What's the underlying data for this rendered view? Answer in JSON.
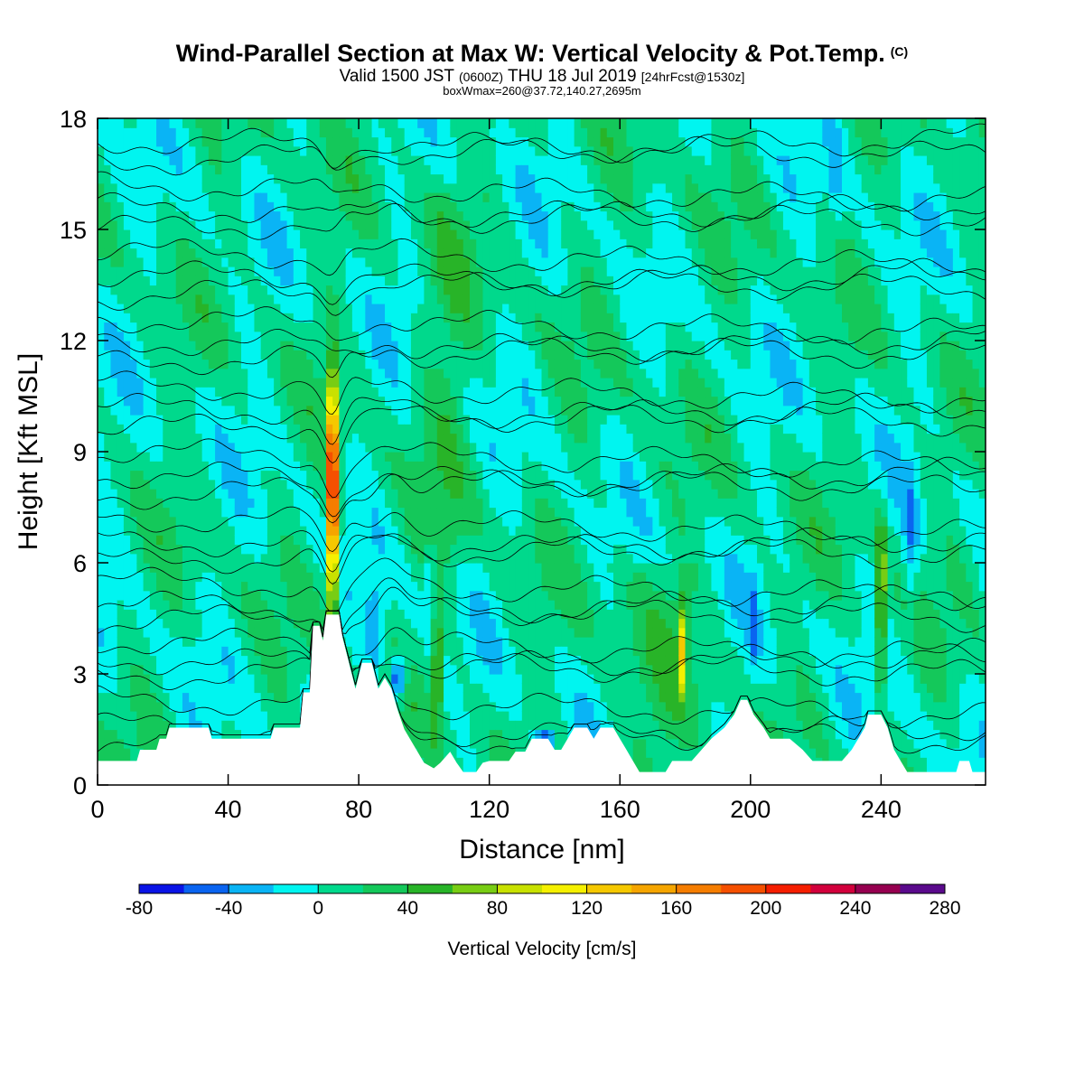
{
  "header": {
    "title": "Wind-Parallel Section at Max W: Vertical Velocity & Pot.Temp.",
    "title_mark": "(C)",
    "valid_prefix": "Valid 1500 JST",
    "valid_utc": "(0600Z)",
    "valid_date": "THU 18 Jul 2019",
    "forecast": "[24hrFcst@1530z]",
    "box_info": "boxWmax=260@37.72,140.27,2695m"
  },
  "chart_data": {
    "type": "heatmap",
    "xlabel": "Distance [nm]",
    "ylabel": "Height [Kft MSL]",
    "xlim": [
      0,
      272
    ],
    "ylim": [
      0,
      18
    ],
    "x_ticks": [
      0,
      40,
      80,
      120,
      160,
      200,
      240
    ],
    "y_ticks": [
      0,
      3,
      6,
      9,
      12,
      15,
      18
    ],
    "colorbar": {
      "title": "Vertical Velocity [cm/s]",
      "tick_labels": [
        "-80",
        "-40",
        "0",
        "40",
        "80",
        "120",
        "160",
        "200",
        "240",
        "280"
      ],
      "levels": [
        -80,
        -60,
        -40,
        -20,
        0,
        20,
        40,
        60,
        80,
        100,
        120,
        140,
        160,
        180,
        200,
        220,
        240,
        260,
        280
      ],
      "colors": [
        "#0a14e6",
        "#0a64f0",
        "#0ab4f5",
        "#00f5f0",
        "#00d98c",
        "#14c85a",
        "#28b428",
        "#78cd14",
        "#c8e100",
        "#f5f000",
        "#f5c800",
        "#f5a500",
        "#f57d00",
        "#f55000",
        "#f51e00",
        "#d2003c",
        "#960050",
        "#5a0a8c"
      ]
    },
    "features": {
      "background_value_cms": 5,
      "max_updraft": {
        "x_nm": 72,
        "height_kft": [
          4.8,
          10.8
        ],
        "peak_cms": 260
      },
      "secondary_updrafts": [
        {
          "x_nm": 240,
          "height_kft": [
            2.3,
            7.5
          ],
          "peak_cms": 110
        },
        {
          "x_nm": 179,
          "height_kft": [
            2.5,
            5.0
          ],
          "peak_cms": 100
        },
        {
          "x_nm": 104,
          "height_kft": [
            1.5,
            5.0
          ],
          "peak_cms": 90
        }
      ],
      "downdrafts": [
        {
          "x_nm": 92,
          "height_kft": [
            2.3,
            3.5
          ],
          "min_cms": -80
        },
        {
          "x_nm": 137,
          "height_kft": [
            1.0,
            1.5
          ],
          "min_cms": -80
        }
      ],
      "terrain_profile": [
        [
          0,
          0.65
        ],
        [
          12,
          0.65
        ],
        [
          13,
          0.95
        ],
        [
          18,
          0.95
        ],
        [
          19,
          1.25
        ],
        [
          21,
          1.25
        ],
        [
          22,
          1.55
        ],
        [
          34,
          1.55
        ],
        [
          35,
          1.25
        ],
        [
          53,
          1.25
        ],
        [
          54,
          1.55
        ],
        [
          62,
          1.55
        ],
        [
          63,
          2.5
        ],
        [
          65,
          2.5
        ],
        [
          66,
          4.3
        ],
        [
          68,
          4.3
        ],
        [
          69,
          3.9
        ],
        [
          70,
          4.6
        ],
        [
          74,
          4.6
        ],
        [
          75,
          4.0
        ],
        [
          77,
          3.3
        ],
        [
          79,
          2.6
        ],
        [
          81,
          3.3
        ],
        [
          84,
          3.3
        ],
        [
          86,
          2.6
        ],
        [
          88,
          2.9
        ],
        [
          90,
          2.6
        ],
        [
          92,
          2.0
        ],
        [
          94,
          1.5
        ],
        [
          96,
          1.2
        ],
        [
          98,
          0.9
        ],
        [
          100,
          0.6
        ],
        [
          103,
          0.45
        ],
        [
          105,
          0.6
        ],
        [
          108,
          0.9
        ],
        [
          110,
          0.6
        ],
        [
          112,
          0.35
        ],
        [
          116,
          0.35
        ],
        [
          118,
          0.6
        ],
        [
          120,
          0.65
        ],
        [
          126,
          0.65
        ],
        [
          128,
          0.9
        ],
        [
          131,
          0.9
        ],
        [
          133,
          1.25
        ],
        [
          138,
          1.25
        ],
        [
          140,
          0.95
        ],
        [
          142,
          0.95
        ],
        [
          144,
          1.25
        ],
        [
          146,
          1.55
        ],
        [
          150,
          1.55
        ],
        [
          152,
          1.25
        ],
        [
          154,
          1.55
        ],
        [
          158,
          1.55
        ],
        [
          160,
          1.25
        ],
        [
          162,
          0.95
        ],
        [
          164,
          0.65
        ],
        [
          166,
          0.35
        ],
        [
          174,
          0.35
        ],
        [
          176,
          0.65
        ],
        [
          182,
          0.65
        ],
        [
          185,
          0.95
        ],
        [
          188,
          1.25
        ],
        [
          192,
          1.55
        ],
        [
          195,
          1.9
        ],
        [
          197,
          2.3
        ],
        [
          199,
          2.3
        ],
        [
          201,
          1.9
        ],
        [
          204,
          1.55
        ],
        [
          206,
          1.25
        ],
        [
          212,
          1.25
        ],
        [
          216,
          0.95
        ],
        [
          219,
          0.65
        ],
        [
          228,
          0.65
        ],
        [
          231,
          0.95
        ],
        [
          233,
          1.25
        ],
        [
          235,
          1.55
        ],
        [
          236,
          1.9
        ],
        [
          240,
          1.9
        ],
        [
          242,
          1.55
        ],
        [
          244,
          0.95
        ],
        [
          246,
          0.65
        ],
        [
          248,
          0.35
        ],
        [
          263,
          0.35
        ],
        [
          264,
          0.65
        ],
        [
          267,
          0.65
        ],
        [
          268,
          0.35
        ],
        [
          272,
          0.35
        ]
      ]
    },
    "isentropes": {
      "style": "thin black lines",
      "heights_at_left_kft": [
        0.9,
        1.6,
        2.3,
        2.9,
        3.4,
        3.9,
        4.4,
        4.9,
        5.5,
        6.0,
        6.6,
        7.2,
        7.8,
        8.4,
        9.0,
        9.6,
        10.2,
        10.8,
        11.4,
        12.0,
        12.6,
        13.2,
        13.8,
        14.4,
        15.0,
        15.6,
        16.2,
        16.8,
        17.4
      ]
    }
  }
}
